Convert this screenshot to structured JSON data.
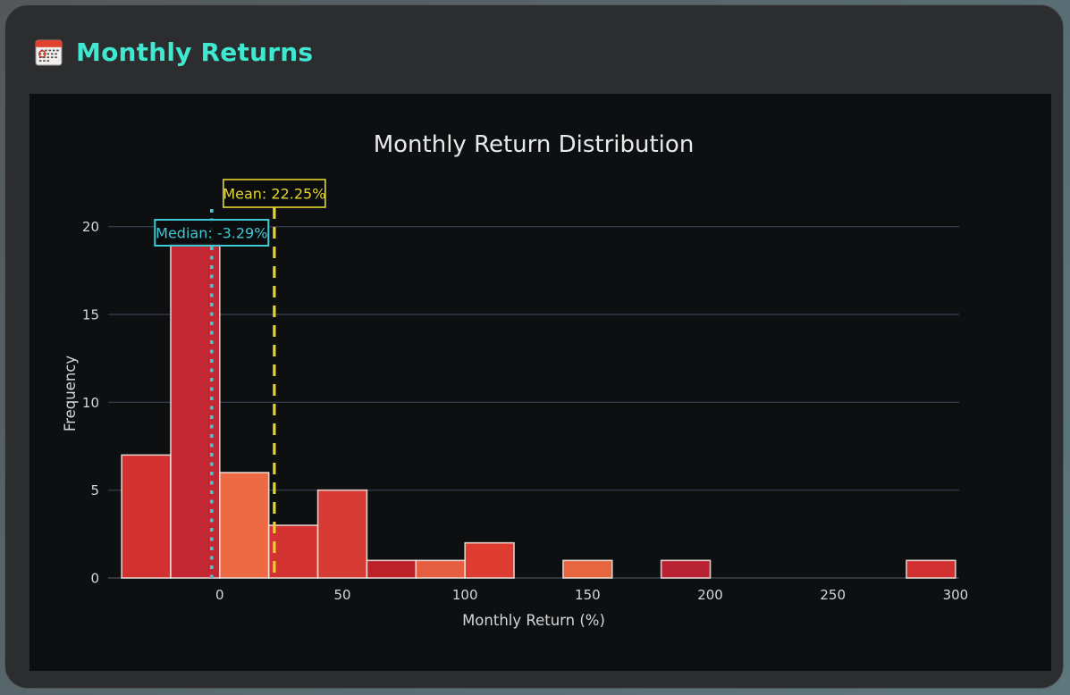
{
  "card": {
    "title": "Monthly Returns",
    "title_color": "#3fe8d0",
    "icon": "calendar-icon",
    "background": "#2b2d2e",
    "panel_background": "#0e0f10"
  },
  "chart_data": {
    "type": "bar",
    "subtype": "histogram",
    "title": "Monthly Return Distribution",
    "xlabel": "Monthly Return (%)",
    "ylabel": "Frequency",
    "xlim": [
      -45.5,
      301.5
    ],
    "ylim": [
      0,
      21
    ],
    "xticks": [
      0,
      50,
      100,
      150,
      200,
      250,
      300
    ],
    "yticks": [
      0,
      5,
      10,
      15,
      20
    ],
    "grid": true,
    "bin_width": 20,
    "bins": [
      {
        "range": [
          -40,
          -20
        ],
        "count": 7,
        "color": "#d33030"
      },
      {
        "range": [
          -20,
          0
        ],
        "count": 19,
        "color": "#c32733"
      },
      {
        "range": [
          0,
          20
        ],
        "count": 6,
        "color": "#ee6a43"
      },
      {
        "range": [
          20,
          40
        ],
        "count": 3,
        "color": "#d23330"
      },
      {
        "range": [
          40,
          60
        ],
        "count": 5,
        "color": "#d63b33"
      },
      {
        "range": [
          60,
          80
        ],
        "count": 1,
        "color": "#bc2029"
      },
      {
        "range": [
          80,
          100
        ],
        "count": 1,
        "color": "#e55e40"
      },
      {
        "range": [
          100,
          120
        ],
        "count": 2,
        "color": "#de3b31"
      },
      {
        "range": [
          120,
          140
        ],
        "count": 0,
        "color": null
      },
      {
        "range": [
          140,
          160
        ],
        "count": 1,
        "color": "#e8663f"
      },
      {
        "range": [
          160,
          180
        ],
        "count": 0,
        "color": null
      },
      {
        "range": [
          180,
          200
        ],
        "count": 1,
        "color": "#b92233"
      },
      {
        "range": [
          200,
          220
        ],
        "count": 0,
        "color": null
      },
      {
        "range": [
          220,
          240
        ],
        "count": 0,
        "color": null
      },
      {
        "range": [
          240,
          260
        ],
        "count": 0,
        "color": null
      },
      {
        "range": [
          260,
          280
        ],
        "count": 0,
        "color": null
      },
      {
        "range": [
          280,
          300
        ],
        "count": 1,
        "color": "#d23132"
      }
    ],
    "mean_line": {
      "label": "Mean: 22.25%",
      "value": 22.25,
      "color": "#e5d62b",
      "style": "dashed"
    },
    "median_line": {
      "label": "Median: -3.29%",
      "value": -3.29,
      "color": "#3fc9d6",
      "style": "dotted"
    },
    "colors": {
      "title_text": "#e8e9eb",
      "tick_text": "#d4d6d8",
      "axis_label_text": "#d4d6d8",
      "gridline": "#2e3a49",
      "baseline": "#3a4249",
      "bar_edge": "#f2e9e4"
    }
  }
}
